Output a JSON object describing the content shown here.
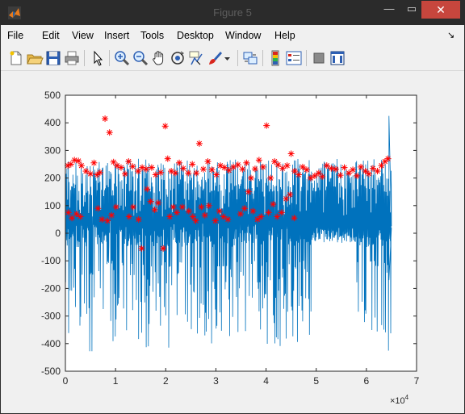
{
  "window": {
    "title": "Figure 5",
    "minimize_glyph": "—",
    "maximize_glyph": "▭",
    "close_glyph": "✕"
  },
  "menu": {
    "items": [
      "File",
      "Edit",
      "View",
      "Insert",
      "Tools",
      "Desktop",
      "Window",
      "Help"
    ],
    "dock_glyph": "↘"
  },
  "toolbar": {
    "buttons": [
      "new-figure-icon",
      "open-file-icon",
      "save-icon",
      "print-icon",
      "edit-plot-arrow-icon",
      "zoom-in-icon",
      "zoom-out-icon",
      "pan-hand-icon",
      "rotate-3d-icon",
      "data-cursor-icon",
      "brush-icon",
      "brush-dropdown-icon",
      "link-plot-icon",
      "insert-colorbar-icon",
      "insert-legend-icon",
      "hide-plot-tools-icon",
      "show-plot-tools-icon"
    ]
  },
  "colors": {
    "signal": "#0072bd",
    "peaks": "#ff0000",
    "close_button": "#c7463d",
    "titlebar": "#2b2b2b"
  },
  "chart_data": {
    "type": "line",
    "xlim": [
      0,
      70000
    ],
    "ylim": [
      -500,
      500
    ],
    "x_ticks": [
      0,
      1,
      2,
      3,
      4,
      5,
      6,
      7
    ],
    "y_ticks": [
      500,
      400,
      300,
      200,
      100,
      0,
      -100,
      -200,
      -300,
      -400,
      -500
    ],
    "x_exponent_label": "×10",
    "x_exponent_power": "4",
    "grid": false,
    "series": [
      {
        "kind": "line",
        "description_type": "signal",
        "x_range": [
          0,
          65000
        ],
        "baseline_band": [
          -50,
          50
        ],
        "upper_spike_typical": [
          150,
          270
        ],
        "lower_spike_typical": [
          -100,
          -430
        ],
        "quiet_interval": [
          49000,
          58000
        ],
        "end_spike": [
          64500,
          425
        ],
        "end_dip": [
          64500,
          -170
        ]
      },
      {
        "kind": "markers",
        "marker": "asterisk",
        "description_type": "detected-peaks",
        "points": [
          [
            500,
            245
          ],
          [
            1100,
            250
          ],
          [
            1800,
            265
          ],
          [
            2600,
            262
          ],
          [
            3200,
            245
          ],
          [
            4100,
            225
          ],
          [
            5000,
            215
          ],
          [
            5700,
            255
          ],
          [
            6300,
            212
          ],
          [
            6900,
            220
          ],
          [
            7900,
            415
          ],
          [
            8800,
            365
          ],
          [
            9600,
            258
          ],
          [
            10300,
            245
          ],
          [
            11100,
            238
          ],
          [
            11900,
            215
          ],
          [
            12600,
            260
          ],
          [
            13400,
            242
          ],
          [
            14500,
            225
          ],
          [
            15300,
            238
          ],
          [
            16100,
            232
          ],
          [
            17200,
            238
          ],
          [
            18000,
            212
          ],
          [
            19000,
            220
          ],
          [
            19900,
            388
          ],
          [
            20400,
            270
          ],
          [
            21100,
            225
          ],
          [
            21900,
            218
          ],
          [
            22700,
            255
          ],
          [
            23500,
            235
          ],
          [
            24500,
            218
          ],
          [
            25300,
            250
          ],
          [
            26100,
            218
          ],
          [
            26700,
            325
          ],
          [
            27500,
            232
          ],
          [
            28400,
            260
          ],
          [
            29200,
            230
          ],
          [
            30100,
            212
          ],
          [
            30900,
            245
          ],
          [
            31700,
            238
          ],
          [
            32600,
            228
          ],
          [
            33500,
            240
          ],
          [
            34400,
            248
          ],
          [
            35300,
            232
          ],
          [
            36100,
            255
          ],
          [
            37000,
            200
          ],
          [
            37800,
            233
          ],
          [
            38600,
            265
          ],
          [
            39400,
            240
          ],
          [
            40100,
            390
          ],
          [
            40900,
            200
          ],
          [
            41700,
            260
          ],
          [
            42400,
            248
          ],
          [
            43300,
            235
          ],
          [
            44200,
            245
          ],
          [
            45000,
            288
          ],
          [
            45700,
            225
          ],
          [
            46500,
            212
          ],
          [
            47300,
            240
          ],
          [
            48100,
            230
          ],
          [
            48900,
            200
          ],
          [
            49700,
            208
          ],
          [
            50500,
            218
          ],
          [
            51200,
            205
          ],
          [
            52100,
            245
          ],
          [
            53000,
            235
          ],
          [
            53900,
            232
          ],
          [
            54800,
            210
          ],
          [
            55600,
            238
          ],
          [
            56500,
            218
          ],
          [
            57300,
            230
          ],
          [
            58100,
            208
          ],
          [
            58900,
            240
          ],
          [
            59800,
            225
          ],
          [
            60500,
            215
          ],
          [
            61300,
            235
          ],
          [
            62200,
            225
          ],
          [
            63000,
            245
          ],
          [
            63700,
            260
          ],
          [
            64300,
            270
          ],
          [
            600,
            75
          ],
          [
            1300,
            55
          ],
          [
            2200,
            70
          ],
          [
            3000,
            60
          ],
          [
            6500,
            90
          ],
          [
            7300,
            50
          ],
          [
            8400,
            45
          ],
          [
            9200,
            65
          ],
          [
            10100,
            95
          ],
          [
            12700,
            60
          ],
          [
            13500,
            95
          ],
          [
            14600,
            50
          ],
          [
            15200,
            -55
          ],
          [
            16300,
            160
          ],
          [
            17000,
            115
          ],
          [
            17800,
            85
          ],
          [
            18500,
            110
          ],
          [
            19500,
            -55
          ],
          [
            20800,
            60
          ],
          [
            21500,
            95
          ],
          [
            22200,
            75
          ],
          [
            23300,
            95
          ],
          [
            24600,
            80
          ],
          [
            25400,
            60
          ],
          [
            26000,
            45
          ],
          [
            27100,
            95
          ],
          [
            27800,
            65
          ],
          [
            28600,
            100
          ],
          [
            29900,
            45
          ],
          [
            30700,
            80
          ],
          [
            31500,
            60
          ],
          [
            32400,
            50
          ],
          [
            34900,
            70
          ],
          [
            35700,
            90
          ],
          [
            36500,
            150
          ],
          [
            37400,
            80
          ],
          [
            38300,
            50
          ],
          [
            39000,
            60
          ],
          [
            40500,
            75
          ],
          [
            41400,
            105
          ],
          [
            42200,
            60
          ],
          [
            43100,
            75
          ],
          [
            44000,
            125
          ],
          [
            44800,
            140
          ],
          [
            45600,
            55
          ]
        ]
      }
    ]
  }
}
